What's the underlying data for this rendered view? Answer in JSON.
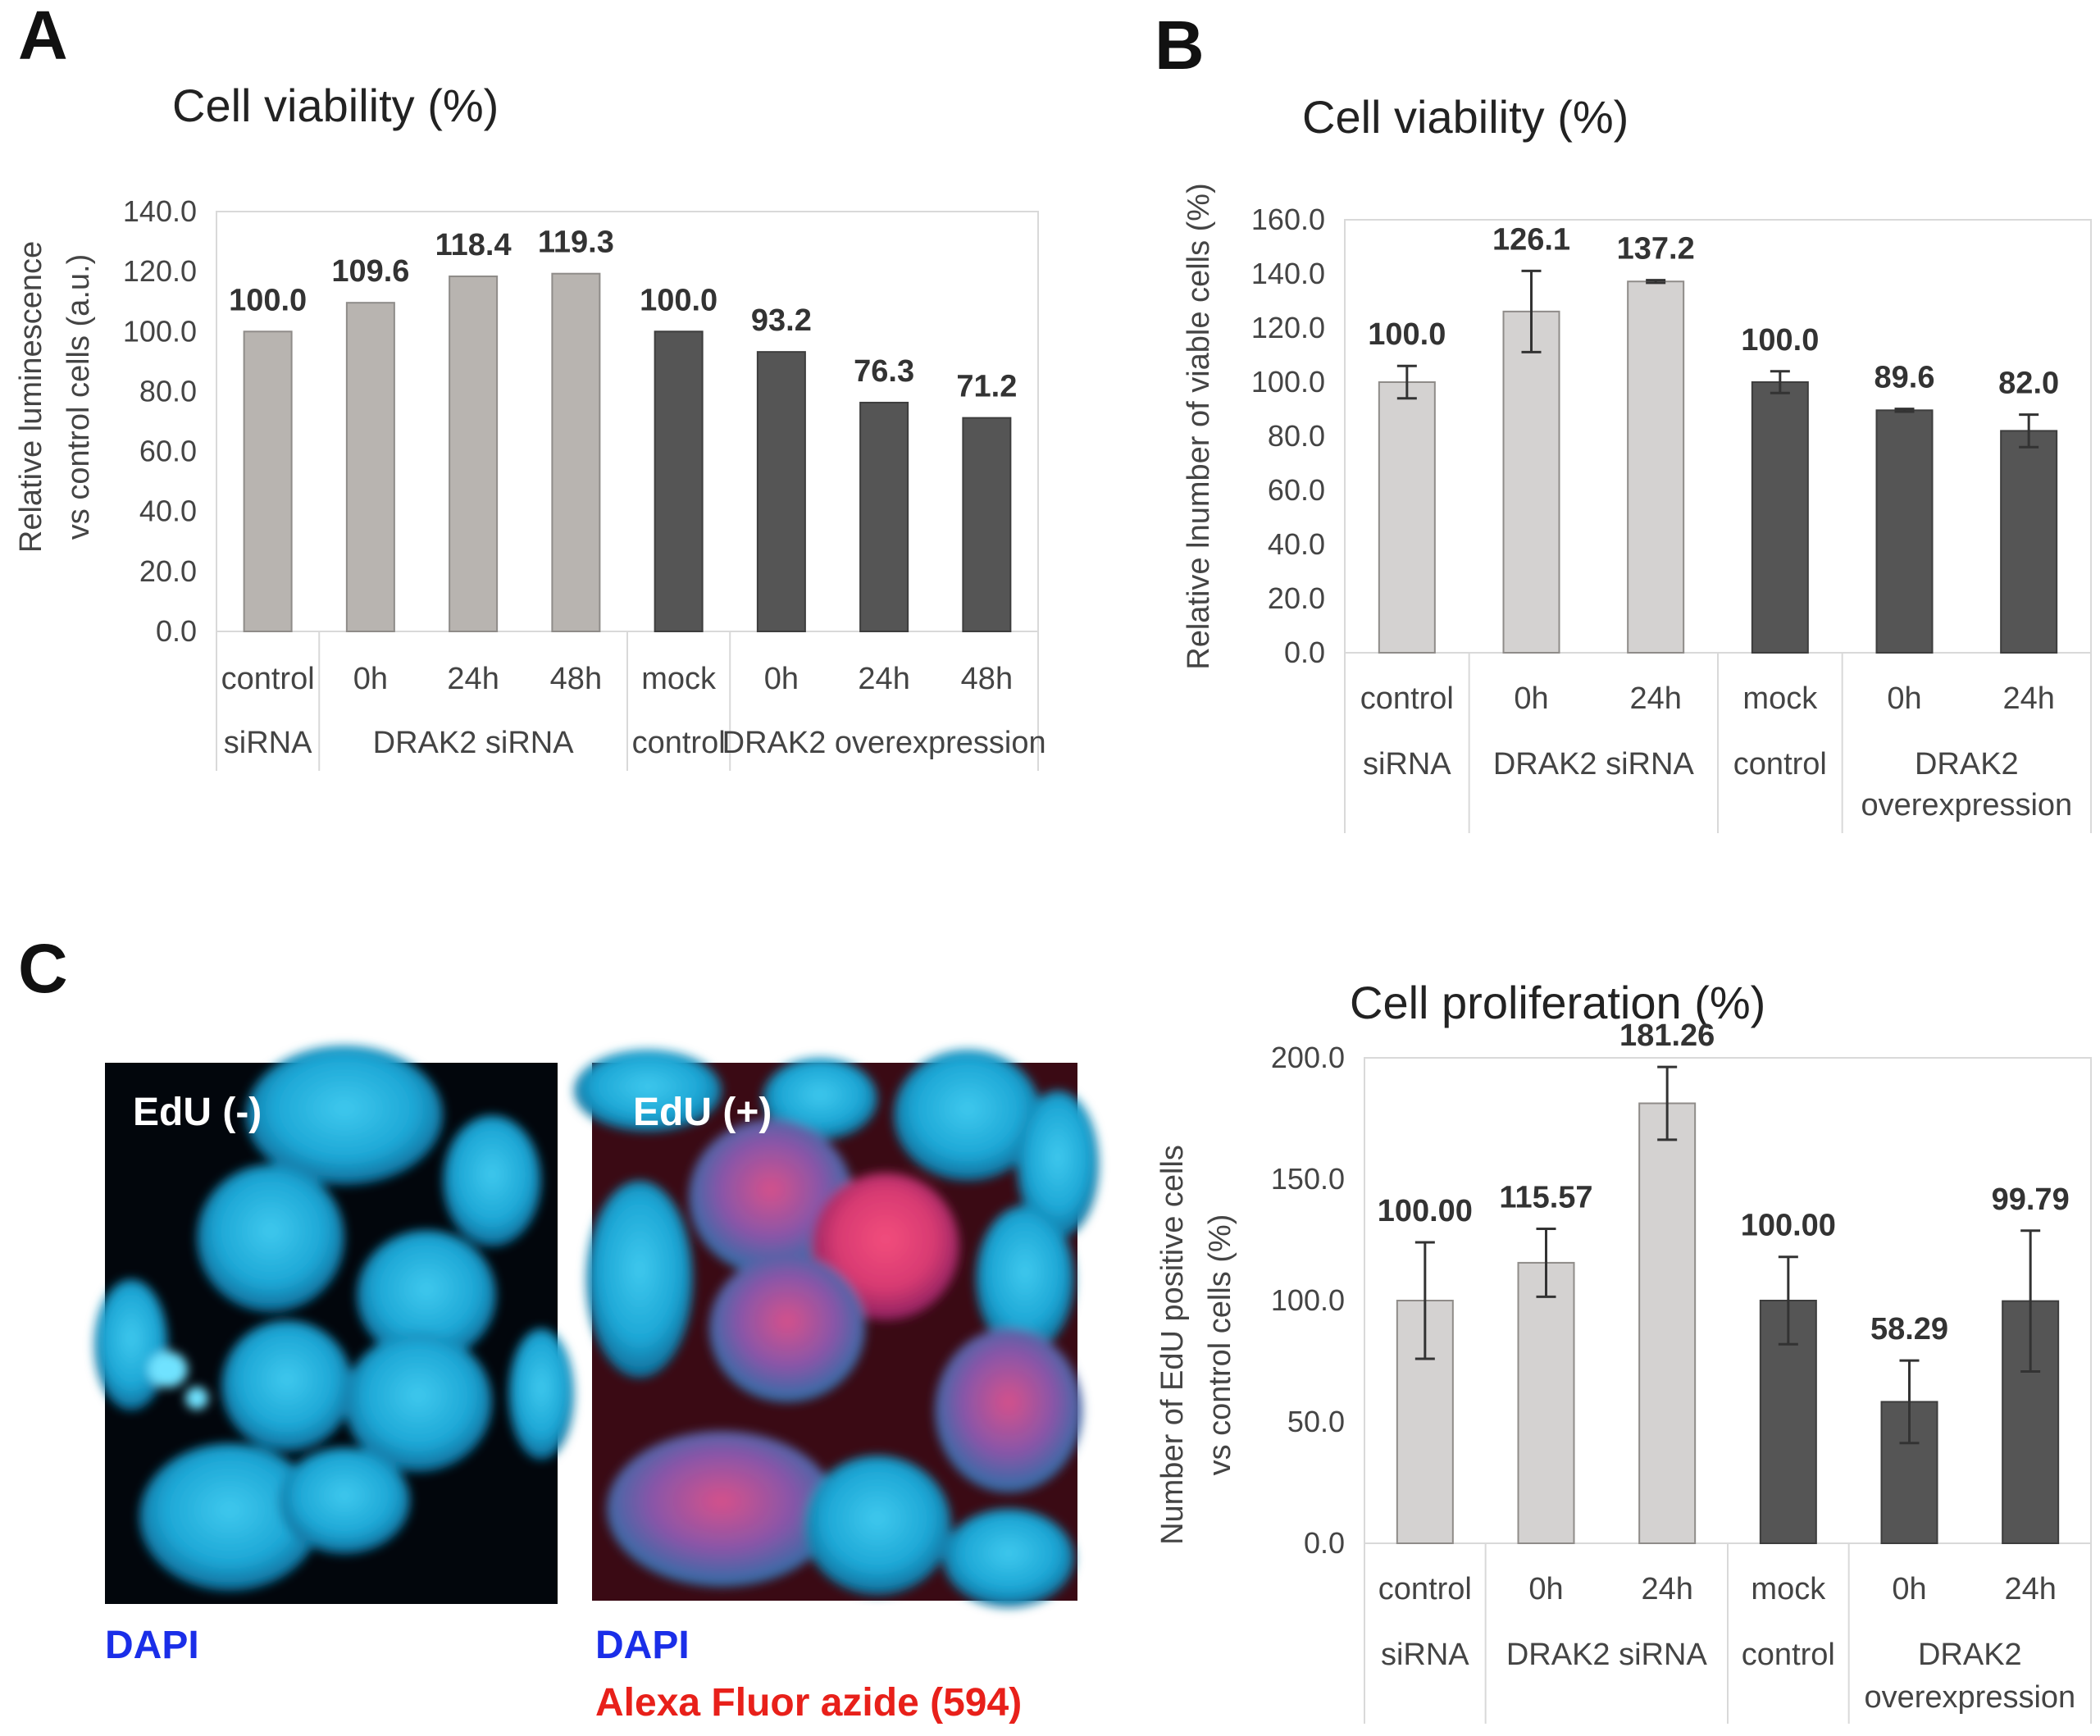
{
  "panels": {
    "a": "A",
    "b": "B",
    "c": "C"
  },
  "colors": {
    "light_bar": "#b8b4b0",
    "light_bar_b": "#d4d2d1",
    "dark_bar": "#555555",
    "dapi_blue": "#1a2ee8",
    "alexa_red": "#e8201a"
  },
  "microscopy": {
    "left_label": "EdU (-)",
    "right_label": "EdU (+)",
    "left_caption": "DAPI",
    "right_caption_1": "DAPI",
    "right_caption_2": "Alexa Fluor azide (594)"
  },
  "chart_data": [
    {
      "id": "A",
      "type": "bar",
      "title": "Cell viability (%)",
      "ylabel": [
        "Relative luminescence",
        "vs control cells (a.u.)"
      ],
      "ylim": [
        0,
        140
      ],
      "yticks": [
        "0.0",
        "20.0",
        "40.0",
        "60.0",
        "80.0",
        "100.0",
        "120.0",
        "140.0"
      ],
      "categories": [
        "control",
        "0h",
        "24h",
        "48h",
        "mock",
        "0h",
        "24h",
        "48h"
      ],
      "values": [
        100.0,
        109.6,
        118.4,
        119.3,
        100.0,
        93.2,
        76.3,
        71.2
      ],
      "value_labels": [
        "100.0",
        "109.6",
        "118.4",
        "119.3",
        "100.0",
        "93.2",
        "76.3",
        "71.2"
      ],
      "bar_colors": [
        "light",
        "light",
        "light",
        "light",
        "dark",
        "dark",
        "dark",
        "dark"
      ],
      "groups": [
        {
          "label": [
            "siRNA"
          ],
          "span": [
            0,
            0
          ]
        },
        {
          "label": [
            "DRAK2 siRNA"
          ],
          "span": [
            1,
            3
          ]
        },
        {
          "label": [
            "control"
          ],
          "span": [
            4,
            4
          ]
        },
        {
          "label": [
            "DRAK2 overexpression"
          ],
          "span": [
            5,
            7
          ]
        }
      ]
    },
    {
      "id": "B",
      "type": "bar",
      "title": "Cell viability (%)",
      "ylabel": [
        "Relative lnumber of viable cells (%)"
      ],
      "ylim": [
        0,
        160
      ],
      "yticks": [
        "0.0",
        "20.0",
        "40.0",
        "60.0",
        "80.0",
        "100.0",
        "120.0",
        "140.0",
        "160.0"
      ],
      "categories": [
        "control",
        "0h",
        "24h",
        "mock",
        "0h",
        "24h"
      ],
      "values": [
        100.0,
        126.1,
        137.2,
        100.0,
        89.6,
        82.0
      ],
      "errors": [
        6,
        15,
        0.5,
        4,
        0.5,
        6
      ],
      "value_labels": [
        "100.0",
        "126.1",
        "137.2",
        "100.0",
        "89.6",
        "82.0"
      ],
      "bar_colors": [
        "light",
        "light",
        "light",
        "dark",
        "dark",
        "dark"
      ],
      "groups": [
        {
          "label": [
            "siRNA"
          ],
          "span": [
            0,
            0
          ]
        },
        {
          "label": [
            "DRAK2 siRNA"
          ],
          "span": [
            1,
            2
          ]
        },
        {
          "label": [
            "control"
          ],
          "span": [
            3,
            3
          ]
        },
        {
          "label": [
            "DRAK2",
            "overexpression"
          ],
          "span": [
            4,
            5
          ]
        }
      ]
    },
    {
      "id": "C",
      "type": "bar",
      "title": "Cell proliferation (%)",
      "ylabel": [
        "Number of EdU positive cells",
        "vs control cells (%)"
      ],
      "ylim": [
        0,
        200
      ],
      "yticks": [
        "0.0",
        "50.0",
        "100.0",
        "150.0",
        "200.0"
      ],
      "categories": [
        "control",
        "0h",
        "24h",
        "mock",
        "0h",
        "24h"
      ],
      "values": [
        100.0,
        115.57,
        181.26,
        100.0,
        58.29,
        99.79
      ],
      "errors": [
        24,
        14,
        15,
        18,
        17,
        29
      ],
      "value_labels": [
        "100.00",
        "115.57",
        "181.26",
        "100.00",
        "58.29",
        "99.79"
      ],
      "bar_colors": [
        "light",
        "light",
        "light",
        "dark",
        "dark",
        "dark"
      ],
      "groups": [
        {
          "label": [
            "siRNA"
          ],
          "span": [
            0,
            0
          ]
        },
        {
          "label": [
            "DRAK2 siRNA"
          ],
          "span": [
            1,
            2
          ]
        },
        {
          "label": [
            "control"
          ],
          "span": [
            3,
            3
          ]
        },
        {
          "label": [
            "DRAK2",
            "overexpression"
          ],
          "span": [
            4,
            5
          ]
        }
      ]
    }
  ]
}
